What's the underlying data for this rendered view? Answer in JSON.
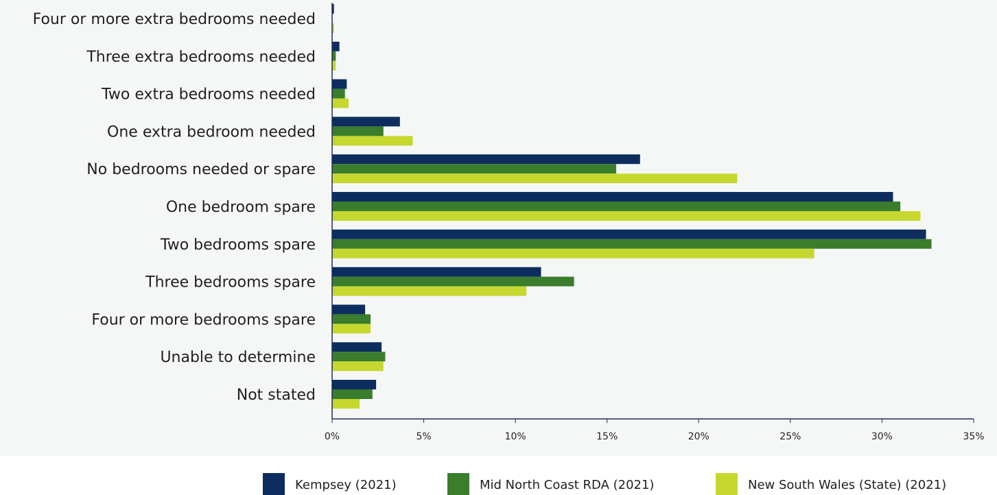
{
  "chart_data": {
    "type": "bar",
    "orientation": "horizontal",
    "title": "",
    "xlabel": "",
    "ylabel": "",
    "xlim": [
      0,
      35
    ],
    "x_ticks": [
      {
        "value": 0,
        "label": "0%"
      },
      {
        "value": 5,
        "label": "5%"
      },
      {
        "value": 10,
        "label": "10%"
      },
      {
        "value": 15,
        "label": "15%"
      },
      {
        "value": 20,
        "label": "20%"
      },
      {
        "value": 25,
        "label": "25%"
      },
      {
        "value": 30,
        "label": "30%"
      },
      {
        "value": 35,
        "label": "35%"
      }
    ],
    "grid": false,
    "legend_position": "bottom-right",
    "categories": [
      "Four or more extra bedrooms needed",
      "Three extra bedrooms needed",
      "Two extra bedrooms needed",
      "One extra bedroom needed",
      "No bedrooms needed or spare",
      "One bedroom spare",
      "Two bedrooms spare",
      "Three bedrooms spare",
      "Four or more bedrooms spare",
      "Unable to determine",
      "Not stated"
    ],
    "series": [
      {
        "name": "Kempsey (2021)",
        "color": "#0d2d5e",
        "values": [
          0.1,
          0.4,
          0.8,
          3.7,
          16.8,
          30.6,
          32.4,
          11.4,
          1.8,
          2.7,
          2.4
        ]
      },
      {
        "name": "Mid North Coast RDA (2021)",
        "color": "#3a7d2c",
        "values": [
          0.0,
          0.2,
          0.7,
          2.8,
          15.5,
          31.0,
          32.7,
          13.2,
          2.1,
          2.9,
          2.2
        ]
      },
      {
        "name": "New South Wales (State) (2021)",
        "color": "#c6d82f",
        "values": [
          0.1,
          0.2,
          0.9,
          4.4,
          22.1,
          32.1,
          26.3,
          10.6,
          2.1,
          2.8,
          1.5
        ]
      }
    ]
  }
}
